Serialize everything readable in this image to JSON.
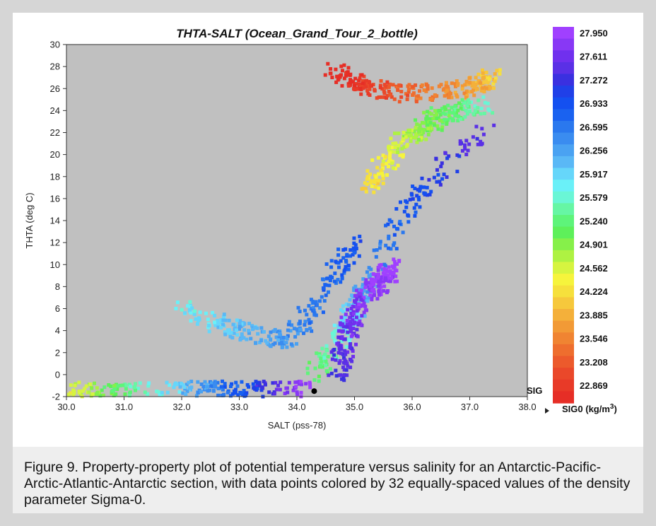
{
  "chart_data": {
    "type": "scatter",
    "title": "THTA-SALT (Ocean_Grand_Tour_2_bottle)",
    "xlabel": "SALT (pss-78)",
    "ylabel": "THTA (deg C)",
    "xlim": [
      30.0,
      38.0
    ],
    "ylim": [
      -2,
      30
    ],
    "x_ticks": [
      "30.0",
      "31.0",
      "32.0",
      "33.0",
      "34.0",
      "35.0",
      "36.0",
      "37.0",
      "38.0"
    ],
    "y_ticks": [
      "-2",
      "0",
      "2",
      "4",
      "6",
      "8",
      "10",
      "12",
      "14",
      "16",
      "18",
      "20",
      "22",
      "24",
      "26",
      "28",
      "30"
    ],
    "background": "#c0c0c0",
    "color_axis": {
      "label": "SIG0 (kg/m3)",
      "label_main": "SIG0 (kg/m",
      "label_sup": "3",
      "label_close": ")",
      "axis_mark": "SIG",
      "tick_labels": [
        "27.950",
        "27.611",
        "27.272",
        "26.933",
        "26.595",
        "26.256",
        "25.917",
        "25.579",
        "25.240",
        "24.901",
        "24.562",
        "24.224",
        "23.885",
        "23.546",
        "23.208",
        "22.869"
      ],
      "n_levels": 32,
      "colors_top_to_bottom": [
        "#a040ff",
        "#8838f5",
        "#7030ee",
        "#5a30e6",
        "#3a30e0",
        "#2040e8",
        "#1450f0",
        "#1a62f0",
        "#2a78ee",
        "#3a8cf0",
        "#4aa2f2",
        "#5ab8f6",
        "#66d6fa",
        "#6af0f8",
        "#6af6d6",
        "#66f6a4",
        "#5ef47a",
        "#5ef05a",
        "#86f04a",
        "#aef242",
        "#d6f440",
        "#f6f43c",
        "#f6e03c",
        "#f6c83c",
        "#f4b03a",
        "#f29a36",
        "#f08432",
        "#ee6e2e",
        "#ec5a2c",
        "#ea482a",
        "#e83a28",
        "#e62e26"
      ]
    },
    "series_regions": [
      {
        "segments": [
          [
            30.0,
            -1.5
          ],
          [
            31.0,
            -1.6
          ],
          [
            32.2,
            -1.4
          ],
          [
            33.2,
            -1.3
          ],
          [
            34.2,
            -1.3
          ]
        ],
        "sigma_range": [
          24.5,
          27.9
        ]
      },
      {
        "segments": [
          [
            34.3,
            -0.2
          ],
          [
            34.8,
            4.0
          ],
          [
            35.2,
            8.0
          ],
          [
            36.0,
            16.0
          ],
          [
            37.3,
            22.5
          ]
        ],
        "sigma_range": [
          25.2,
          27.5
        ]
      },
      {
        "segments": [
          [
            34.7,
            0.0
          ],
          [
            35.0,
            6.0
          ],
          [
            35.7,
            10.0
          ]
        ],
        "sigma_range": [
          27.3,
          27.95
        ]
      },
      {
        "segments": [
          [
            34.6,
            27.5
          ],
          [
            35.3,
            26.0
          ],
          [
            36.0,
            25.5
          ],
          [
            37.0,
            26.0
          ],
          [
            37.4,
            27.0
          ]
        ],
        "sigma_range": [
          22.8,
          24.3
        ]
      },
      {
        "segments": [
          [
            35.2,
            17.0
          ],
          [
            35.8,
            21.0
          ],
          [
            36.5,
            23.5
          ],
          [
            37.3,
            24.5
          ]
        ],
        "sigma_range": [
          24.3,
          25.6
        ]
      },
      {
        "segments": [
          [
            32.0,
            6.0
          ],
          [
            33.0,
            4.0
          ],
          [
            33.8,
            3.0
          ],
          [
            34.3,
            6.0
          ],
          [
            35.0,
            12.0
          ]
        ],
        "sigma_range": [
          25.8,
          26.9
        ]
      }
    ],
    "highlight_point": {
      "x": 34.3,
      "y": -1.5,
      "color": "#000000"
    }
  },
  "caption": "Figure 9. Property-property plot of potential temperature versus salinity for an Antarctic-Pacific-Arctic-Atlantic-Antarctic section, with data points colored by 32 equally-spaced values of the density parameter Sigma-0."
}
